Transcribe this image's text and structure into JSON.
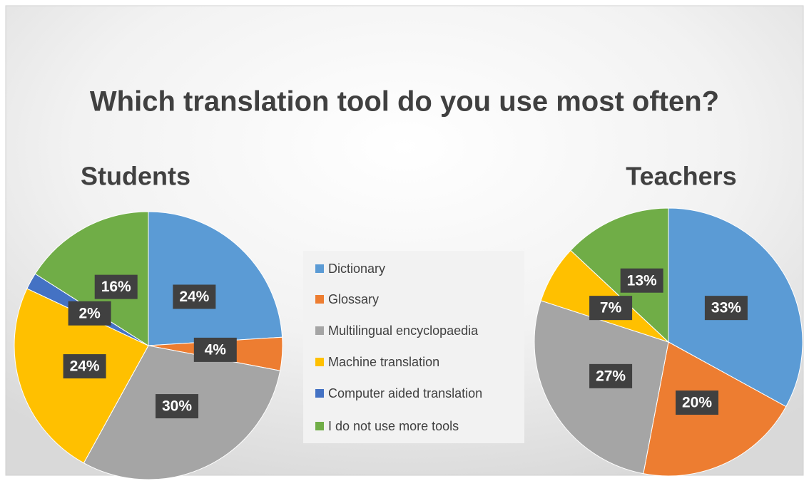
{
  "title": "Which translation tool do you use most often?",
  "chart_data": [
    {
      "type": "pie",
      "title": "Students",
      "categories": [
        "Dictionary",
        "Glossary",
        "Multilingual encyclopaedia",
        "Machine translation",
        "Computer aided translation",
        "I do not use more tools"
      ],
      "values": [
        24,
        4,
        30,
        24,
        2,
        16
      ],
      "value_labels": [
        "24%",
        "4%",
        "30%",
        "24%",
        "2%",
        "16%"
      ],
      "colors": [
        "#5b9bd5",
        "#ed7d31",
        "#a5a5a5",
        "#ffc000",
        "#4472c4",
        "#70ad47"
      ]
    },
    {
      "type": "pie",
      "title": "Teachers",
      "categories": [
        "Dictionary",
        "Glossary",
        "Multilingual encyclopaedia",
        "Machine translation",
        "Computer aided translation",
        "I do not use more tools"
      ],
      "values": [
        33,
        20,
        27,
        7,
        0,
        13
      ],
      "value_labels": [
        "33%",
        "20%",
        "27%",
        "7%",
        null,
        "13%"
      ],
      "colors": [
        "#5b9bd5",
        "#ed7d31",
        "#a5a5a5",
        "#ffc000",
        "#4472c4",
        "#70ad47"
      ]
    }
  ]
}
